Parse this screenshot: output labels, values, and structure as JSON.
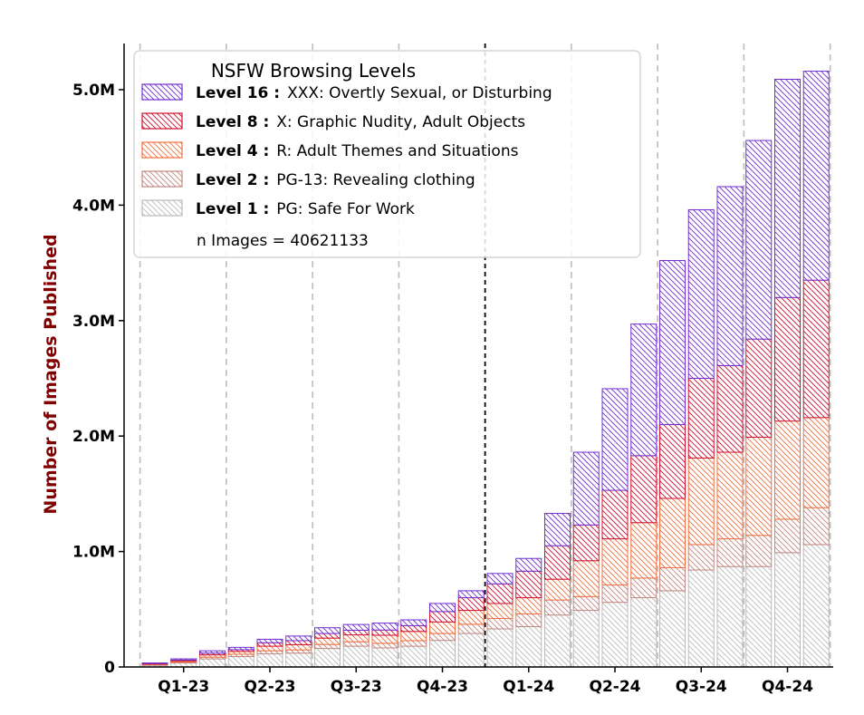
{
  "chart_data": {
    "type": "bar",
    "stacked": true,
    "ylabel": "Number of Images Published",
    "ylabel_color": "#800000",
    "ylim": [
      0,
      5400000
    ],
    "yticks": [
      {
        "value": 0,
        "label": "0"
      },
      {
        "value": 1000000,
        "label": "1.0M"
      },
      {
        "value": 2000000,
        "label": "2.0M"
      },
      {
        "value": 3000000,
        "label": "3.0M"
      },
      {
        "value": 4000000,
        "label": "4.0M"
      },
      {
        "value": 5000000,
        "label": "5.0M"
      }
    ],
    "quarter_labels": [
      "Q1-23",
      "Q2-23",
      "Q3-23",
      "Q4-23",
      "Q1-24",
      "Q2-24",
      "Q3-24",
      "Q4-24"
    ],
    "n_bars": 24,
    "marker_line_after_bar": 12,
    "grid": "dashed vertical lines at quarter boundaries",
    "legend": {
      "title": "NSFW Browsing Levels",
      "placement": "top-left",
      "entries": [
        {
          "level": "Level 16 :",
          "desc": "XXX: Overtly Sexual, or Disturbing"
        },
        {
          "level": "Level 8 :",
          "desc": "X: Graphic Nudity, Adult Objects"
        },
        {
          "level": "Level 4 :",
          "desc": "R: Adult Themes and Situations"
        },
        {
          "level": "Level 2 :",
          "desc": "PG-13: Revealing clothing"
        },
        {
          "level": "Level 1 :",
          "desc": "PG: Safe For Work"
        }
      ],
      "note": "n Images = 40621133"
    },
    "series": [
      {
        "name": "Level 1",
        "color": "#bbbbbb",
        "values": [
          15000,
          35000,
          70000,
          90000,
          115000,
          120000,
          160000,
          180000,
          165000,
          180000,
          230000,
          290000,
          330000,
          350000,
          450000,
          490000,
          560000,
          600000,
          660000,
          840000,
          870000,
          870000,
          990000,
          1060000
        ]
      },
      {
        "name": "Level 2",
        "color": "#c08880",
        "values": [
          5000,
          8000,
          15000,
          20000,
          25000,
          28000,
          35000,
          38000,
          40000,
          48000,
          60000,
          80000,
          90000,
          110000,
          130000,
          120000,
          150000,
          170000,
          200000,
          220000,
          240000,
          270000,
          290000,
          320000
        ]
      },
      {
        "name": "Level 4",
        "color": "#f07040",
        "values": [
          5000,
          10000,
          20000,
          25000,
          40000,
          45000,
          55000,
          60000,
          70000,
          80000,
          100000,
          120000,
          130000,
          140000,
          180000,
          310000,
          400000,
          480000,
          600000,
          750000,
          750000,
          850000,
          850000,
          780000
        ]
      },
      {
        "name": "Level 8",
        "color": "#d01030",
        "values": [
          5000,
          7000,
          15000,
          15000,
          30000,
          35000,
          40000,
          40000,
          45000,
          50000,
          90000,
          110000,
          170000,
          230000,
          290000,
          310000,
          420000,
          580000,
          640000,
          690000,
          750000,
          850000,
          1070000,
          1190000
        ]
      },
      {
        "name": "Level 16",
        "color": "#7030d0",
        "values": [
          5000,
          10000,
          20000,
          20000,
          30000,
          40000,
          50000,
          50000,
          60000,
          50000,
          70000,
          60000,
          90000,
          110000,
          280000,
          630000,
          880000,
          1140000,
          1420000,
          1460000,
          1550000,
          1720000,
          1890000,
          1810000
        ]
      }
    ]
  }
}
